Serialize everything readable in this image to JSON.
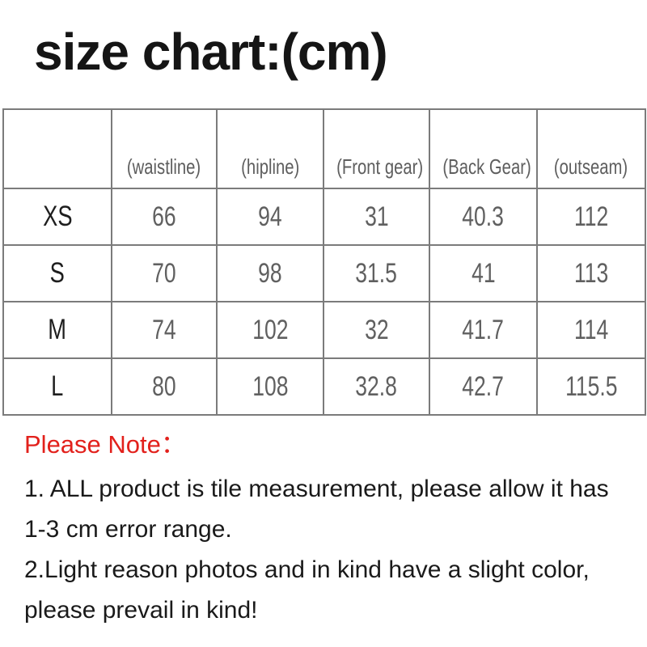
{
  "title": "size chart:(cm)",
  "table": {
    "columns": [
      "",
      "(waistline)",
      "(hipline)",
      "(Front gear)",
      "(Back Gear)",
      "(outseam)"
    ],
    "rows": [
      {
        "size": "XS",
        "values": [
          "66",
          "94",
          "31",
          "40.3",
          "112"
        ]
      },
      {
        "size": "S",
        "values": [
          "70",
          "98",
          "31.5",
          "41",
          "113"
        ]
      },
      {
        "size": "M",
        "values": [
          "74",
          "102",
          "32",
          "41.7",
          "114"
        ]
      },
      {
        "size": "L",
        "values": [
          "80",
          "108",
          "32.8",
          "42.7",
          "115.5"
        ]
      }
    ]
  },
  "notes": {
    "heading": "Please Note：",
    "lines": [
      "1. ALL product is tile measurement, please allow it has",
      "1-3 cm error range.",
      "2.Light reason photos and in kind have a slight color,",
      "please prevail in kind!"
    ]
  },
  "colors": {
    "note_accent_red": "#e2211c",
    "table_border_gray": "#7b7b7b",
    "value_text_gray": "#606060",
    "title_black": "#151515"
  }
}
